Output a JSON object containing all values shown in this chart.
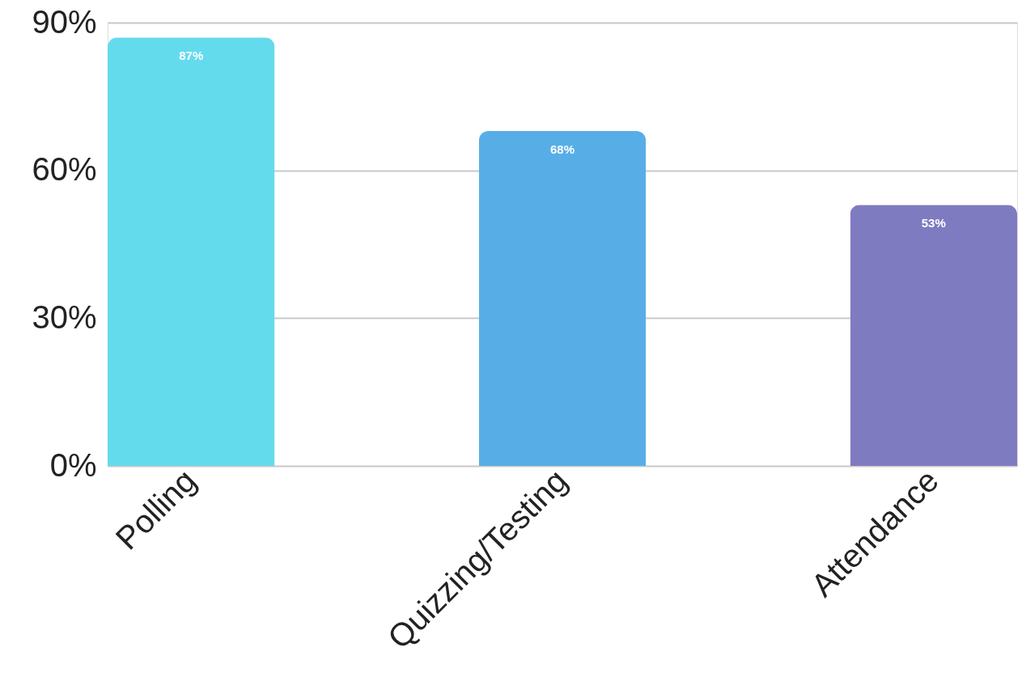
{
  "chart_data": {
    "type": "bar",
    "categories": [
      "Polling",
      "Quizzing/Testing",
      "Attendance"
    ],
    "values": [
      87,
      68,
      53
    ],
    "colors": [
      "#64dbed",
      "#57aee6",
      "#7f7bc1"
    ],
    "value_labels": [
      "87%",
      "68%",
      "53%"
    ],
    "ylim": [
      0,
      90
    ],
    "yticks": [
      {
        "value": 0,
        "label": "0%"
      },
      {
        "value": 30,
        "label": "30%"
      },
      {
        "value": 60,
        "label": "60%"
      },
      {
        "value": 90,
        "label": "90%"
      }
    ],
    "grid": "y"
  }
}
